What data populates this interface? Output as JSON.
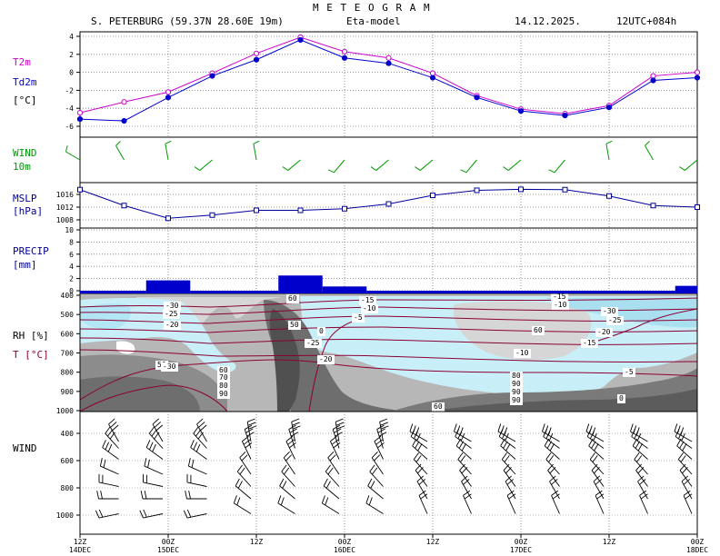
{
  "header": {
    "title": "M E T E O G R A M",
    "station": "S. PETERBURG (59.37N 28.60E  19m)",
    "model": "Eta-model",
    "date": "14.12.2025.",
    "run": "12UTC+084h"
  },
  "colors": {
    "t2m": "#cc00cc",
    "td2m": "#0000cc",
    "wind": "#009900",
    "mslp": "#000099",
    "precip": "#0000cc",
    "temp_contour": "#8b0033"
  },
  "panels": {
    "temperature": {
      "label1": "T2m",
      "label2": "Td2m",
      "label3": "[°C]"
    },
    "wind10": {
      "label1": "WIND",
      "label2": "10m"
    },
    "mslp": {
      "label1": "MSLP",
      "label2": "[hPa]"
    },
    "precip": {
      "label1": "PRECIP",
      "label2": "[mm]"
    },
    "rh": {
      "label1": "RH [%]",
      "label2": "T [°C]"
    },
    "wind_profile": {
      "label1": "WIND"
    }
  },
  "time_axis": {
    "labels": [
      {
        "top": "12Z",
        "bottom": "14DEC"
      },
      {
        "top": "00Z",
        "bottom": "15DEC"
      },
      {
        "top": "12Z",
        "bottom": ""
      },
      {
        "top": "00Z",
        "bottom": "16DEC"
      },
      {
        "top": "12Z",
        "bottom": ""
      },
      {
        "top": "00Z",
        "bottom": "17DEC"
      },
      {
        "top": "12Z",
        "bottom": ""
      },
      {
        "top": "00Z",
        "bottom": "18DEC"
      }
    ]
  },
  "chart_data": [
    {
      "type": "line",
      "name": "T2m / Td2m",
      "x_hours": [
        0,
        6,
        12,
        18,
        24,
        30,
        36,
        42,
        48,
        54,
        60,
        66,
        72,
        78,
        84
      ],
      "ylim": [
        -7,
        4.5
      ],
      "yticks": [
        4,
        2,
        0,
        -2,
        -4,
        -6
      ],
      "series": [
        {
          "name": "T2m",
          "values": [
            -4.5,
            -3.3,
            -2.2,
            -0.1,
            2.1,
            3.9,
            2.3,
            1.6,
            -0.1,
            -2.6,
            -4.1,
            -4.6,
            -3.7,
            -0.4,
            0.0
          ]
        },
        {
          "name": "Td2m",
          "values": [
            -5.2,
            -5.4,
            -2.8,
            -0.4,
            1.4,
            3.6,
            1.6,
            1.0,
            -0.6,
            -2.8,
            -4.3,
            -4.8,
            -3.9,
            -0.9,
            -0.6
          ]
        }
      ]
    },
    {
      "type": "scatter",
      "name": "WIND 10m",
      "x_hours": [
        0,
        6,
        12,
        18,
        24,
        30,
        36,
        42,
        48,
        54,
        60,
        66,
        72,
        78,
        84
      ],
      "direction_deg": [
        300,
        330,
        350,
        230,
        350,
        230,
        220,
        230,
        230,
        220,
        230,
        220,
        350,
        330,
        230
      ],
      "speed_kt": [
        10,
        10,
        10,
        10,
        10,
        10,
        10,
        10,
        10,
        10,
        10,
        10,
        10,
        10,
        10
      ]
    },
    {
      "type": "line",
      "name": "MSLP",
      "x_hours": [
        0,
        6,
        12,
        18,
        24,
        30,
        36,
        42,
        48,
        54,
        60,
        66,
        72,
        78,
        84
      ],
      "ylim": [
        1005,
        1019
      ],
      "yticks": [
        1016,
        1012,
        1008
      ],
      "series": [
        {
          "name": "MSLP",
          "values": [
            1017.5,
            1012.5,
            1008.5,
            1009.5,
            1011,
            1011,
            1011.5,
            1013,
            1015.7,
            1017.3,
            1017.6,
            1017.5,
            1015.5,
            1012.5,
            1012
          ]
        }
      ]
    },
    {
      "type": "bar",
      "name": "PRECIP",
      "ylim": [
        0,
        10
      ],
      "yticks": [
        10,
        8,
        6,
        4,
        2,
        0
      ],
      "bars": [
        {
          "start_h": 0,
          "end_h": 9,
          "value": 0
        },
        {
          "start_h": 9,
          "end_h": 15,
          "value": 1.7
        },
        {
          "start_h": 15,
          "end_h": 27,
          "value": 0
        },
        {
          "start_h": 27,
          "end_h": 33,
          "value": 2.5
        },
        {
          "start_h": 33,
          "end_h": 39,
          "value": 0.7
        },
        {
          "start_h": 39,
          "end_h": 81,
          "value": 0
        },
        {
          "start_h": 81,
          "end_h": 84,
          "value": 0.8
        }
      ]
    },
    {
      "type": "heatmap",
      "name": "RH / T cross-section",
      "y_axis": "pressure hPa",
      "ylim": [
        1000,
        400
      ],
      "yticks": [
        400,
        500,
        600,
        700,
        800,
        900,
        1000
      ],
      "rh_labels": [
        "50",
        "60",
        "70",
        "80",
        "90",
        "60",
        "50",
        "60",
        "80",
        "90",
        "90",
        "90",
        "60"
      ],
      "t_labels": [
        "-30",
        "-25",
        "-20",
        "-15",
        "-10",
        "-5",
        "0",
        "-25",
        "-20",
        "-15",
        "-10",
        "-30",
        "-25",
        "-20",
        "-15",
        "-10",
        "-5",
        "0",
        "-30"
      ]
    },
    {
      "type": "scatter",
      "name": "WIND profile",
      "y_axis": "pressure hPa",
      "ylim": [
        1050,
        300
      ],
      "yticks": [
        400,
        600,
        800,
        1000
      ]
    }
  ]
}
